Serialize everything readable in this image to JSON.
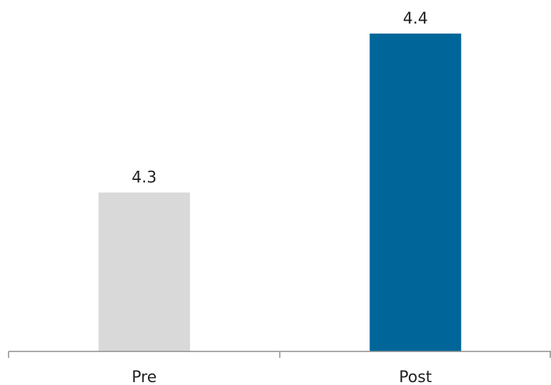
{
  "chart_data": {
    "type": "bar",
    "categories": [
      "Pre",
      "Post"
    ],
    "values": [
      4.3,
      4.4
    ],
    "value_labels": [
      "4.3",
      "4.4"
    ],
    "title": "",
    "xlabel": "",
    "ylabel": "",
    "ylim": [
      4.2,
      4.4
    ],
    "grid": false,
    "legend": "none",
    "colors": [
      "#d9d9d9",
      "#006699"
    ],
    "axis_color": "#8c8c8c"
  }
}
